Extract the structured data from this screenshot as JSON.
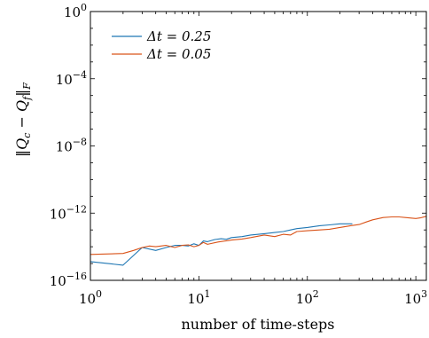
{
  "chart_data": {
    "type": "line",
    "xscale": "log",
    "yscale": "log",
    "xlim": [
      1,
      1250
    ],
    "ylim": [
      1e-16,
      1
    ],
    "xlabel": "number of time-steps",
    "ylabel": "‖Q_c − Q_f‖_F",
    "legend_position": "top-left",
    "x_ticks": [
      {
        "value": 1,
        "base": "10",
        "exp": "0"
      },
      {
        "value": 10,
        "base": "10",
        "exp": "1"
      },
      {
        "value": 100,
        "base": "10",
        "exp": "2"
      },
      {
        "value": 1000,
        "base": "10",
        "exp": "3"
      }
    ],
    "y_ticks": [
      {
        "value": 1,
        "base": "10",
        "exp": "0"
      },
      {
        "value": 0.0001,
        "base": "10",
        "exp": "−4"
      },
      {
        "value": 1e-08,
        "base": "10",
        "exp": "−8"
      },
      {
        "value": 1e-12,
        "base": "10",
        "exp": "−12"
      },
      {
        "value": 1e-16,
        "base": "10",
        "exp": "−16"
      }
    ],
    "series": [
      {
        "name": "Δt = 0.25",
        "color": "#1f77b4",
        "x": [
          1,
          2,
          3,
          4,
          5,
          6,
          7,
          8,
          9,
          10,
          11,
          12,
          14,
          16,
          18,
          20,
          25,
          30,
          40,
          50,
          60,
          70,
          80,
          100,
          130,
          160,
          200,
          260
        ],
        "y": [
          1.3e-15,
          8e-16,
          9e-15,
          6e-15,
          9e-15,
          1.2e-14,
          1.2e-14,
          1.1e-14,
          1.5e-14,
          1.2e-14,
          2.2e-14,
          2e-14,
          2.7e-14,
          3e-14,
          2.8e-14,
          3.5e-14,
          4e-14,
          5e-14,
          6e-14,
          7e-14,
          8e-14,
          1e-13,
          1.2e-13,
          1.4e-13,
          1.8e-13,
          2e-13,
          2.3e-13,
          2.3e-13
        ]
      },
      {
        "name": "Δt = 0.05",
        "color": "#d95319",
        "x": [
          1,
          2,
          2.5,
          3,
          3.5,
          4,
          5,
          6,
          7,
          8,
          9,
          10,
          11,
          12,
          15,
          20,
          25,
          30,
          40,
          50,
          60,
          70,
          80,
          100,
          130,
          160,
          200,
          250,
          300,
          350,
          400,
          500,
          600,
          700,
          800,
          1000,
          1100,
          1250
        ],
        "y": [
          3.5e-15,
          4e-15,
          6e-15,
          9e-15,
          1.1e-14,
          1e-14,
          1.2e-14,
          9e-15,
          1.2e-14,
          1.3e-14,
          1e-14,
          1.2e-14,
          1.8e-14,
          1.4e-14,
          1.9e-14,
          2.5e-14,
          2.9e-14,
          3.5e-14,
          5e-14,
          4e-14,
          5.5e-14,
          5e-14,
          8e-14,
          9e-14,
          1e-13,
          1.1e-13,
          1.4e-13,
          1.8e-13,
          2.1e-13,
          3e-13,
          4e-13,
          5.5e-13,
          6e-13,
          6e-13,
          5.5e-13,
          4.8e-13,
          5.2e-13,
          6.5e-13
        ]
      }
    ]
  }
}
